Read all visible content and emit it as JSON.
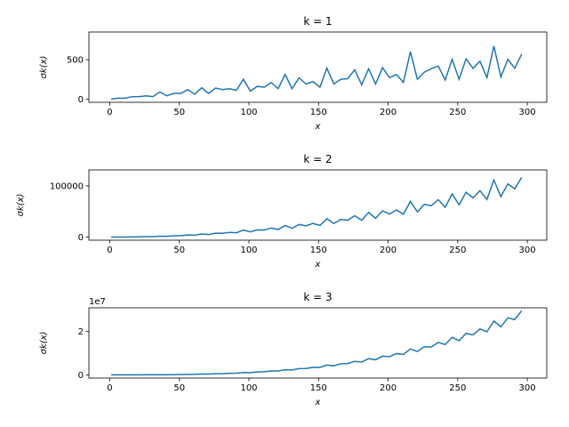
{
  "chart_data": [
    {
      "type": "line",
      "title": "k = 1",
      "x_label": "x",
      "y_label": "σk(x)",
      "x": [
        1,
        6,
        11,
        16,
        21,
        26,
        31,
        36,
        41,
        46,
        51,
        56,
        61,
        66,
        71,
        76,
        81,
        86,
        91,
        96,
        101,
        106,
        111,
        116,
        121,
        126,
        131,
        136,
        141,
        146,
        151,
        156,
        161,
        166,
        171,
        176,
        181,
        186,
        191,
        196,
        201,
        206,
        211,
        216,
        221,
        226,
        231,
        236,
        241,
        246,
        251,
        256,
        261,
        266,
        271,
        276,
        281,
        286,
        291,
        296
      ],
      "series": [
        {
          "color": "#1f77b4",
          "values": [
            1,
            12,
            12,
            31,
            32,
            42,
            32,
            91,
            42,
            72,
            72,
            120,
            62,
            144,
            72,
            140,
            121,
            132,
            112,
            252,
            102,
            162,
            152,
            210,
            133,
            312,
            132,
            270,
            192,
            222,
            152,
            392,
            192,
            252,
            260,
            372,
            182,
            384,
            192,
            399,
            272,
            312,
            212,
            600,
            252,
            342,
            384,
            420,
            242,
            504,
            252,
            511,
            390,
            480,
            272,
            672,
            282,
            504,
            392,
            570
          ]
        }
      ],
      "xlim": [
        -15,
        314
      ],
      "xticks": [
        0,
        50,
        100,
        150,
        200,
        250,
        300
      ],
      "ylim": [
        -40,
        850
      ],
      "yticks": [
        0,
        500
      ]
    },
    {
      "type": "line",
      "title": "k = 2",
      "x_label": "x",
      "y_label": "σk(x)",
      "x": [
        1,
        6,
        11,
        16,
        21,
        26,
        31,
        36,
        41,
        46,
        51,
        56,
        61,
        66,
        71,
        76,
        81,
        86,
        91,
        96,
        101,
        106,
        111,
        116,
        121,
        126,
        131,
        136,
        141,
        146,
        151,
        156,
        161,
        166,
        171,
        176,
        181,
        186,
        191,
        196,
        201,
        206,
        211,
        216,
        221,
        226,
        231,
        236,
        241,
        246,
        251,
        256,
        261,
        266,
        271,
        276,
        281,
        286,
        291,
        296
      ],
      "series": [
        {
          "color": "#1f77b4",
          "values": [
            1,
            50,
            122,
            341,
            500,
            850,
            962,
            1911,
            1682,
            2650,
            2900,
            4250,
            3722,
            6100,
            5042,
            7602,
            7381,
            9250,
            8500,
            13650,
            10202,
            14050,
            13700,
            17682,
            14763,
            22750,
            17162,
            24650,
            22100,
            26650,
            22802,
            35700,
            26500,
            34450,
            32942,
            41602,
            32762,
            48100,
            36482,
            51471,
            44900,
            53050,
            44522,
            69700,
            49300,
            63850,
            61000,
            73122,
            58082,
            84100,
            63002,
            87381,
            76622,
            90500,
            73442,
            111300,
            78962,
            103700,
            94100,
            116450
          ]
        }
      ],
      "xlim": [
        -15,
        314
      ],
      "xticks": [
        0,
        50,
        100,
        150,
        200,
        250,
        300
      ],
      "ylim": [
        -6000,
        131000
      ],
      "yticks": [
        0,
        100000
      ]
    },
    {
      "type": "line",
      "title": "k = 3",
      "x_label": "x",
      "y_label": "σk(x)",
      "y_offset_label": "1e7",
      "x": [
        1,
        6,
        11,
        16,
        21,
        26,
        31,
        36,
        41,
        46,
        51,
        56,
        61,
        66,
        71,
        76,
        81,
        86,
        91,
        96,
        101,
        106,
        111,
        116,
        121,
        126,
        131,
        136,
        141,
        146,
        151,
        156,
        161,
        166,
        171,
        176,
        181,
        186,
        191,
        196,
        201,
        206,
        211,
        216,
        221,
        226,
        231,
        236,
        241,
        246,
        251,
        256,
        261,
        266,
        271,
        276,
        281,
        286,
        291,
        296
      ],
      "series": [
        {
          "color": "#1f77b4",
          "values": [
            1,
            252,
            1332,
            4681,
            9632,
            19782,
            29792,
            55261,
            68922,
            109512,
            137592,
            201240,
            226982,
            335664,
            357912,
            500780,
            551881,
            715572,
            756112,
            1048572,
            1030302,
            1339902,
            1418312,
            1780470,
            1772893,
            2343672,
            2248092,
            2874690,
            2907072,
            3501162,
            3442952,
            4492712,
            4185792,
            5146092,
            5193020,
            6235092,
            5929742,
            7507584,
            6967872,
            8613489,
            8421392,
            9834552,
            9393932,
            11957400,
            10800972,
            12986082,
            12829824,
            14992740,
            13997522,
            17368344,
            15813252,
            19173961,
            18463230,
            21238560,
            19902512,
            24871392,
            22188042,
            26349624,
            25554872,
            29632590
          ]
        }
      ],
      "xlim": [
        -15,
        314
      ],
      "xticks": [
        0,
        50,
        100,
        150,
        200,
        250,
        300
      ],
      "ylim": [
        -1500000,
        31000000
      ],
      "yticks": [
        0,
        {
          "value": 20000000,
          "label": "2"
        }
      ]
    }
  ]
}
